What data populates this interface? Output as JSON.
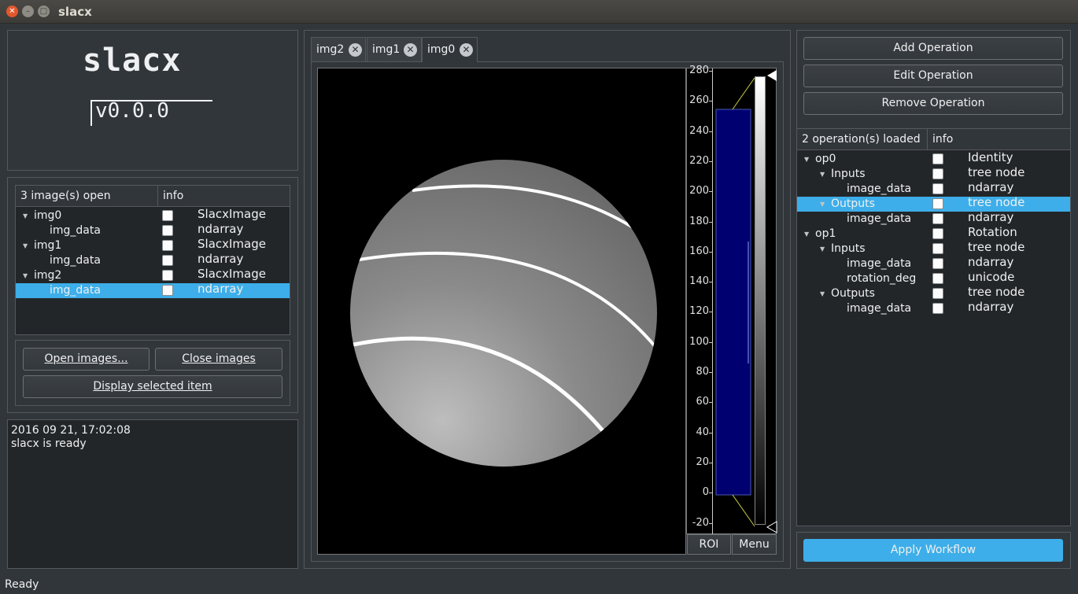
{
  "window": {
    "title": "slacx"
  },
  "logo": {
    "title": "slacx",
    "version": "v0.0.0"
  },
  "images_tree": {
    "header_count": "3 image(s) open",
    "header_info": "info",
    "rows": [
      {
        "label": "img0",
        "info": "SlacxImage",
        "expanded": true,
        "indent": 0
      },
      {
        "label": "img_data",
        "info": "ndarray",
        "indent": 1
      },
      {
        "label": "img1",
        "info": "SlacxImage",
        "expanded": true,
        "indent": 0
      },
      {
        "label": "img_data",
        "info": "ndarray",
        "indent": 1
      },
      {
        "label": "img2",
        "info": "SlacxImage",
        "expanded": true,
        "indent": 0
      },
      {
        "label": "img_data",
        "info": "ndarray",
        "indent": 1,
        "selected": true
      }
    ]
  },
  "buttons": {
    "open_images": "Open images...",
    "close_images": "Close images",
    "display_selected": "Display selected item",
    "add_operation": "Add Operation",
    "edit_operation": "Edit Operation",
    "remove_operation": "Remove Operation",
    "apply_workflow": "Apply Workflow",
    "roi": "ROI",
    "menu": "Menu"
  },
  "log": {
    "timestamp": "2016 09 21, 17:02:08",
    "message": "slacx is ready"
  },
  "tabs": [
    {
      "label": "img2",
      "active": false
    },
    {
      "label": "img1",
      "active": false
    },
    {
      "label": "img0",
      "active": true
    }
  ],
  "histogram": {
    "ticks": [
      "280",
      "260",
      "240",
      "220",
      "200",
      "180",
      "160",
      "140",
      "120",
      "100",
      "80",
      "60",
      "40",
      "20",
      "0",
      "-20"
    ],
    "level_min": 0,
    "level_max": 255
  },
  "ops_tree": {
    "header_count": "2 operation(s) loaded",
    "header_info": "info",
    "rows": [
      {
        "label": "op0",
        "info": "Identity",
        "indent": 0,
        "expanded": true
      },
      {
        "label": "Inputs",
        "info": "tree node",
        "indent": 1,
        "expanded": true
      },
      {
        "label": "image_data",
        "info": "ndarray",
        "indent": 2
      },
      {
        "label": "Outputs",
        "info": "tree node",
        "indent": 1,
        "expanded": true,
        "selected": true
      },
      {
        "label": "image_data",
        "info": "ndarray",
        "indent": 2
      },
      {
        "label": "op1",
        "info": "Rotation",
        "indent": 0,
        "expanded": true
      },
      {
        "label": "Inputs",
        "info": "tree node",
        "indent": 1,
        "expanded": true
      },
      {
        "label": "image_data",
        "info": "ndarray",
        "indent": 2
      },
      {
        "label": "rotation_deg",
        "info": "unicode",
        "indent": 2
      },
      {
        "label": "Outputs",
        "info": "tree node",
        "indent": 1,
        "expanded": true
      },
      {
        "label": "image_data",
        "info": "ndarray",
        "indent": 2
      }
    ]
  },
  "statusbar": {
    "text": "Ready"
  },
  "colors": {
    "accent": "#3daee9",
    "background": "#31363b",
    "tree_bg": "#232629"
  }
}
